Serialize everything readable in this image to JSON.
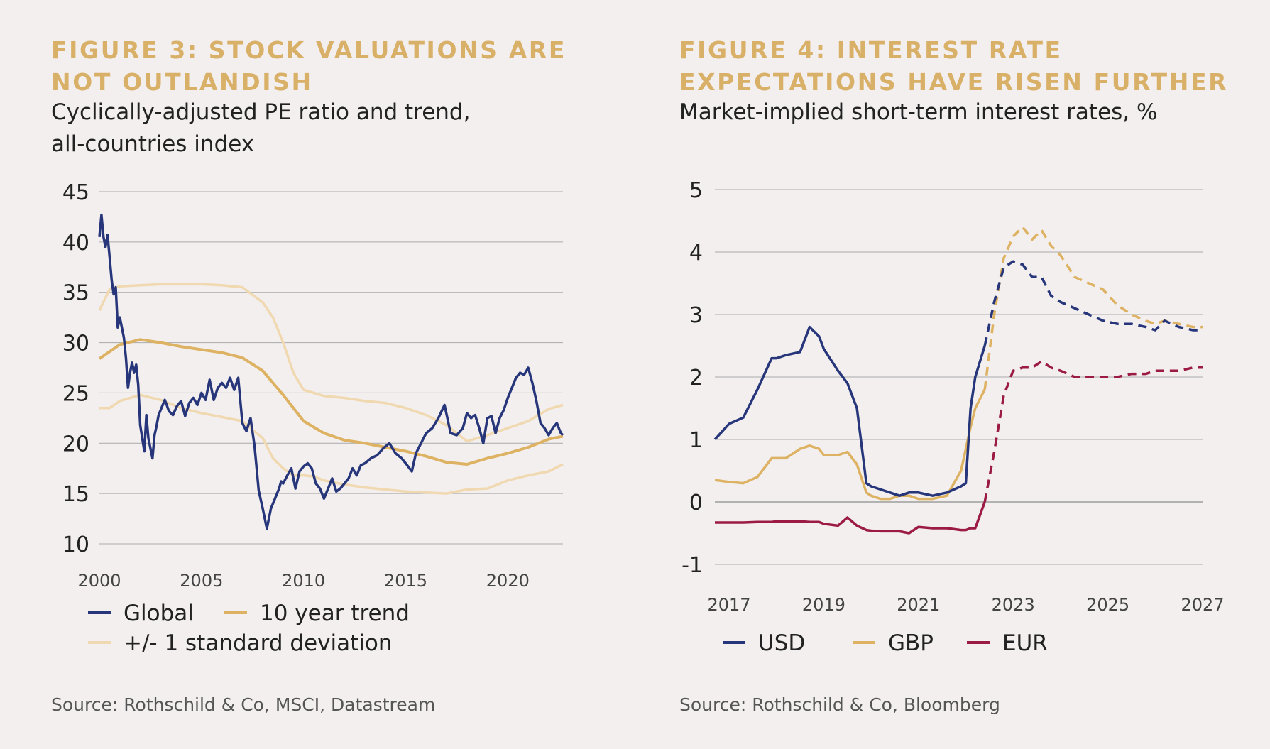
{
  "colors": {
    "title": "#d9b067",
    "global": "#27367a",
    "trend": "#ddb263",
    "stdev": "#f0d9b0",
    "usd": "#27367a",
    "gbp": "#ddb263",
    "eur": "#9b1b45",
    "grid": "#aaaaaa"
  },
  "left": {
    "title": "FIGURE 3: STOCK VALUATIONS ARE NOT OUTLANDISH",
    "subtitle": "Cyclically-adjusted PE ratio and trend, all-countries index",
    "source": "Source: Rothschild & Co, MSCI, Datastream"
  },
  "right": {
    "title": "FIGURE 4: INTEREST RATE EXPECTATIONS HAVE RISEN FURTHER",
    "subtitle": "Market-implied short-term interest rates, %",
    "source": "Source: Rothschild & Co, Bloomberg"
  },
  "chart_data": [
    {
      "type": "line",
      "title": "FIGURE 3: STOCK VALUATIONS ARE NOT OUTLANDISH",
      "subtitle": "Cyclically-adjusted PE ratio and trend, all-countries index",
      "xlabel": "",
      "ylabel": "",
      "xlim": [
        2000,
        2022.7
      ],
      "ylim": [
        10,
        45
      ],
      "yticks": [
        10,
        15,
        20,
        25,
        30,
        35,
        40,
        45
      ],
      "xticks": [
        2000,
        2005,
        2010,
        2015,
        2020
      ],
      "grid": "horizontal",
      "legend": "bottom",
      "series": [
        {
          "name": "Global",
          "style": "solid",
          "color_key": "global",
          "legend_row": 0,
          "x": [
            2000.0,
            2000.1,
            2000.2,
            2000.3,
            2000.4,
            2000.5,
            2000.6,
            2000.7,
            2000.8,
            2000.9,
            2001.0,
            2001.2,
            2001.3,
            2001.4,
            2001.5,
            2001.6,
            2001.7,
            2001.8,
            2001.9,
            2002.0,
            2002.2,
            2002.3,
            2002.4,
            2002.5,
            2002.6,
            2002.7,
            2002.8,
            2002.9,
            2003.0,
            2003.2,
            2003.3,
            2003.4,
            2003.6,
            2003.8,
            2004.0,
            2004.2,
            2004.4,
            2004.6,
            2004.8,
            2005.0,
            2005.2,
            2005.4,
            2005.6,
            2005.8,
            2006.0,
            2006.2,
            2006.4,
            2006.6,
            2006.8,
            2007.0,
            2007.2,
            2007.4,
            2007.6,
            2007.8,
            2008.0,
            2008.2,
            2008.4,
            2008.6,
            2008.8,
            2008.9,
            2009.0,
            2009.2,
            2009.4,
            2009.6,
            2009.8,
            2010.0,
            2010.2,
            2010.4,
            2010.6,
            2010.8,
            2011.0,
            2011.2,
            2011.4,
            2011.6,
            2011.8,
            2012.0,
            2012.2,
            2012.4,
            2012.6,
            2012.8,
            2013.0,
            2013.3,
            2013.6,
            2013.9,
            2014.2,
            2014.5,
            2014.8,
            2015.0,
            2015.3,
            2015.5,
            2015.8,
            2016.0,
            2016.3,
            2016.6,
            2016.9,
            2017.2,
            2017.5,
            2017.8,
            2018.0,
            2018.2,
            2018.4,
            2018.6,
            2018.8,
            2019.0,
            2019.2,
            2019.4,
            2019.6,
            2019.8,
            2020.0,
            2020.2,
            2020.4,
            2020.6,
            2020.8,
            2021.0,
            2021.2,
            2021.4,
            2021.6,
            2021.8,
            2022.0,
            2022.2,
            2022.4,
            2022.5,
            2022.6,
            2022.7
          ],
          "y": [
            40.5,
            42.7,
            40.5,
            39.5,
            40.7,
            38.5,
            36.2,
            34.8,
            35.5,
            31.5,
            32.5,
            30.5,
            28.5,
            25.5,
            27.0,
            28.0,
            27.0,
            27.8,
            25.8,
            21.8,
            19.2,
            22.8,
            20.5,
            19.5,
            18.5,
            20.8,
            21.7,
            22.8,
            23.3,
            24.3,
            23.8,
            23.2,
            22.8,
            23.7,
            24.2,
            22.7,
            24.0,
            24.5,
            23.8,
            25.0,
            24.3,
            26.3,
            24.3,
            25.5,
            26.0,
            25.5,
            26.5,
            25.3,
            26.5,
            22.0,
            21.2,
            22.5,
            19.7,
            15.3,
            13.5,
            11.5,
            13.5,
            14.5,
            15.5,
            16.2,
            16.0,
            16.8,
            17.5,
            15.5,
            17.2,
            17.7,
            18.0,
            17.5,
            16.0,
            15.5,
            14.5,
            15.5,
            16.5,
            15.2,
            15.5,
            16.0,
            16.5,
            17.5,
            16.8,
            17.8,
            18.0,
            18.5,
            18.8,
            19.5,
            20.0,
            19.0,
            18.5,
            18.0,
            17.2,
            19.0,
            20.2,
            21.0,
            21.5,
            22.5,
            23.8,
            21.0,
            20.8,
            21.5,
            23.0,
            22.5,
            22.8,
            21.5,
            20.0,
            22.5,
            22.7,
            21.0,
            22.5,
            23.3,
            24.5,
            25.5,
            26.5,
            27.0,
            26.8,
            27.5,
            26.0,
            24.2,
            22.0,
            21.5,
            20.8,
            21.5,
            22.0,
            21.5,
            21.0,
            20.8
          ]
        },
        {
          "name": "10 year trend",
          "style": "solid",
          "color_key": "trend",
          "legend_row": 0,
          "x": [
            2000,
            2001,
            2002,
            2003,
            2004,
            2005,
            2006,
            2007,
            2008,
            2009,
            2010,
            2011,
            2012,
            2013,
            2014,
            2015,
            2016,
            2017,
            2018,
            2019,
            2020,
            2021,
            2022,
            2022.7
          ],
          "y": [
            28.4,
            29.8,
            30.3,
            30.0,
            29.6,
            29.3,
            29.0,
            28.5,
            27.2,
            24.8,
            22.2,
            21.0,
            20.3,
            20.0,
            19.6,
            19.2,
            18.7,
            18.1,
            17.9,
            18.5,
            19.0,
            19.6,
            20.4,
            20.7
          ]
        },
        {
          "name": "+/- 1 standard deviation",
          "style": "solid",
          "color_key": "stdev",
          "legend_row": 1,
          "x": [
            2000,
            2000.5,
            2001,
            2002,
            2003,
            2004,
            2005,
            2006,
            2007,
            2008,
            2008.5,
            2009,
            2009.5,
            2010,
            2010.5,
            2011,
            2012,
            2013,
            2014,
            2015,
            2016,
            2017,
            2018,
            2019,
            2020,
            2021,
            2022,
            2022.7
          ],
          "y": [
            33.2,
            35.3,
            35.6,
            35.7,
            35.8,
            35.8,
            35.8,
            35.7,
            35.5,
            34.0,
            32.5,
            30.0,
            27.0,
            25.3,
            25.0,
            24.7,
            24.5,
            24.2,
            24.0,
            23.5,
            22.8,
            21.8,
            20.2,
            20.8,
            21.5,
            22.2,
            23.4,
            23.8
          ],
          "x2": [
            2000,
            2000.5,
            2001,
            2002,
            2003,
            2004,
            2005,
            2006,
            2007,
            2008,
            2008.5,
            2009,
            2009.5,
            2010,
            2010.5,
            2011,
            2012,
            2013,
            2014,
            2015,
            2016,
            2017,
            2018,
            2019,
            2020,
            2021,
            2022,
            2022.7
          ],
          "y2": [
            23.5,
            23.5,
            24.2,
            24.8,
            24.3,
            23.5,
            23.0,
            22.6,
            22.2,
            20.5,
            18.5,
            17.5,
            16.8,
            16.8,
            16.7,
            16.3,
            15.9,
            15.6,
            15.4,
            15.2,
            15.1,
            15.0,
            15.4,
            15.5,
            16.3,
            16.8,
            17.2,
            17.9
          ]
        }
      ]
    },
    {
      "type": "line",
      "title": "FIGURE 4: INTEREST RATE EXPECTATIONS HAVE RISEN FURTHER",
      "subtitle": "Market-implied short-term interest rates, %",
      "xlabel": "",
      "ylabel": "",
      "xlim": [
        2016.7,
        2027.0
      ],
      "ylim": [
        -1,
        5
      ],
      "yticks": [
        -1,
        0,
        1,
        2,
        3,
        4,
        5
      ],
      "ytick_labels": [
        "-1",
        "0",
        "1",
        "2",
        "3",
        "4",
        "5"
      ],
      "xticks": [
        2017,
        2019,
        2021,
        2023,
        2025,
        2027
      ],
      "grid": "horizontal",
      "legend": "bottom",
      "series": [
        {
          "name": "USD",
          "color_key": "usd",
          "actual_x": [
            2016.7,
            2017.0,
            2017.3,
            2017.6,
            2017.9,
            2018.0,
            2018.2,
            2018.5,
            2018.7,
            2018.9,
            2019.0,
            2019.3,
            2019.5,
            2019.7,
            2019.9,
            2020.0,
            2020.2,
            2020.4,
            2020.6,
            2020.8,
            2021.0,
            2021.3,
            2021.6,
            2021.9,
            2022.0,
            2022.1,
            2022.2,
            2022.4
          ],
          "actual_y": [
            1.0,
            1.25,
            1.35,
            1.8,
            2.3,
            2.3,
            2.35,
            2.4,
            2.8,
            2.65,
            2.45,
            2.1,
            1.9,
            1.5,
            0.3,
            0.25,
            0.2,
            0.15,
            0.1,
            0.15,
            0.15,
            0.1,
            0.15,
            0.25,
            0.3,
            1.5,
            2.0,
            2.5
          ],
          "forecast_x": [
            2022.4,
            2022.6,
            2022.8,
            2023.0,
            2023.2,
            2023.4,
            2023.6,
            2023.8,
            2024.0,
            2024.3,
            2024.6,
            2024.9,
            2025.2,
            2025.5,
            2025.8,
            2026.0,
            2026.2,
            2026.5,
            2026.8,
            2027.0
          ],
          "forecast_y": [
            2.5,
            3.2,
            3.75,
            3.85,
            3.8,
            3.6,
            3.6,
            3.3,
            3.2,
            3.1,
            3.0,
            2.9,
            2.85,
            2.85,
            2.8,
            2.75,
            2.9,
            2.8,
            2.75,
            2.75
          ]
        },
        {
          "name": "GBP",
          "color_key": "gbp",
          "actual_x": [
            2016.7,
            2017.0,
            2017.3,
            2017.6,
            2017.9,
            2018.0,
            2018.2,
            2018.5,
            2018.7,
            2018.9,
            2019.0,
            2019.3,
            2019.5,
            2019.7,
            2019.9,
            2020.0,
            2020.2,
            2020.4,
            2020.6,
            2020.8,
            2021.0,
            2021.3,
            2021.6,
            2021.9,
            2022.0,
            2022.1,
            2022.2,
            2022.4
          ],
          "actual_y": [
            0.35,
            0.32,
            0.3,
            0.4,
            0.7,
            0.7,
            0.7,
            0.85,
            0.9,
            0.85,
            0.75,
            0.75,
            0.8,
            0.6,
            0.15,
            0.1,
            0.05,
            0.05,
            0.1,
            0.1,
            0.05,
            0.05,
            0.1,
            0.5,
            0.85,
            1.2,
            1.5,
            1.8
          ],
          "forecast_x": [
            2022.4,
            2022.6,
            2022.8,
            2023.0,
            2023.2,
            2023.4,
            2023.6,
            2023.8,
            2024.0,
            2024.3,
            2024.6,
            2024.9,
            2025.2,
            2025.5,
            2025.8,
            2026.0,
            2026.2,
            2026.5,
            2026.8,
            2027.0
          ],
          "forecast_y": [
            1.8,
            3.0,
            3.9,
            4.25,
            4.4,
            4.2,
            4.35,
            4.1,
            3.95,
            3.6,
            3.5,
            3.4,
            3.15,
            3.0,
            2.9,
            2.85,
            2.9,
            2.85,
            2.8,
            2.8
          ]
        },
        {
          "name": "EUR",
          "color_key": "eur",
          "actual_x": [
            2016.7,
            2017.0,
            2017.3,
            2017.6,
            2017.9,
            2018.0,
            2018.2,
            2018.5,
            2018.7,
            2018.9,
            2019.0,
            2019.3,
            2019.5,
            2019.7,
            2019.9,
            2020.0,
            2020.2,
            2020.4,
            2020.6,
            2020.8,
            2021.0,
            2021.3,
            2021.6,
            2021.9,
            2022.0,
            2022.1,
            2022.2,
            2022.4
          ],
          "actual_y": [
            -0.33,
            -0.33,
            -0.33,
            -0.32,
            -0.32,
            -0.31,
            -0.31,
            -0.31,
            -0.32,
            -0.32,
            -0.35,
            -0.38,
            -0.25,
            -0.38,
            -0.45,
            -0.46,
            -0.47,
            -0.47,
            -0.47,
            -0.5,
            -0.4,
            -0.42,
            -0.42,
            -0.45,
            -0.45,
            -0.42,
            -0.42,
            0.0
          ],
          "forecast_x": [
            2022.4,
            2022.6,
            2022.8,
            2023.0,
            2023.2,
            2023.4,
            2023.6,
            2023.8,
            2024.0,
            2024.3,
            2024.6,
            2024.9,
            2025.2,
            2025.5,
            2025.8,
            2026.0,
            2026.2,
            2026.5,
            2026.8,
            2027.0
          ],
          "forecast_y": [
            0.0,
            0.8,
            1.7,
            2.1,
            2.15,
            2.15,
            2.25,
            2.15,
            2.1,
            2.0,
            2.0,
            2.0,
            2.0,
            2.05,
            2.05,
            2.1,
            2.1,
            2.1,
            2.15,
            2.15
          ]
        }
      ]
    }
  ]
}
